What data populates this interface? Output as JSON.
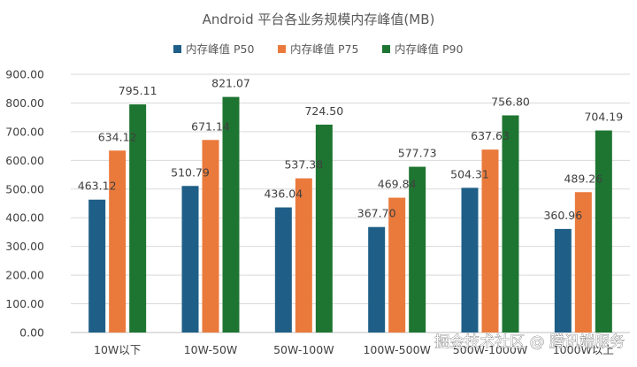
{
  "chart_data": {
    "type": "bar",
    "title": "Android 平台各业务规模内存峰值(MB)",
    "categories": [
      "10W以下",
      "10W-50W",
      "50W-100W",
      "100W-500W",
      "500W-1000W",
      "1000W以上"
    ],
    "series": [
      {
        "name": "内存峰值 P50",
        "color": "#1f5f87",
        "values": [
          463.12,
          510.79,
          436.04,
          367.7,
          504.31,
          360.96
        ],
        "labels": [
          "463.12",
          "510.79",
          "436.04",
          "367.70",
          "504.31",
          "360.96"
        ]
      },
      {
        "name": "内存峰值 P75",
        "color": "#ea7a3c",
        "values": [
          634.12,
          671.14,
          537.38,
          469.84,
          637.63,
          489.26
        ],
        "labels": [
          "634.12",
          "671.14",
          "537.38",
          "469.84",
          "637.63",
          "489.26"
        ]
      },
      {
        "name": "内存峰值 P90",
        "color": "#1e7531",
        "values": [
          795.11,
          821.07,
          724.5,
          577.73,
          756.8,
          704.19
        ],
        "labels": [
          "795.11",
          "821.07",
          "724.50",
          "577.73",
          "756.80",
          "704.19"
        ]
      }
    ],
    "y_ticks": [
      "0.00",
      "100.00",
      "200.00",
      "300.00",
      "400.00",
      "500.00",
      "600.00",
      "700.00",
      "800.00",
      "900.00"
    ],
    "ylim": [
      0,
      900
    ],
    "grid": true,
    "legend_position": "top"
  },
  "watermark": "掘金技术社区 @ 腾讯端服务"
}
